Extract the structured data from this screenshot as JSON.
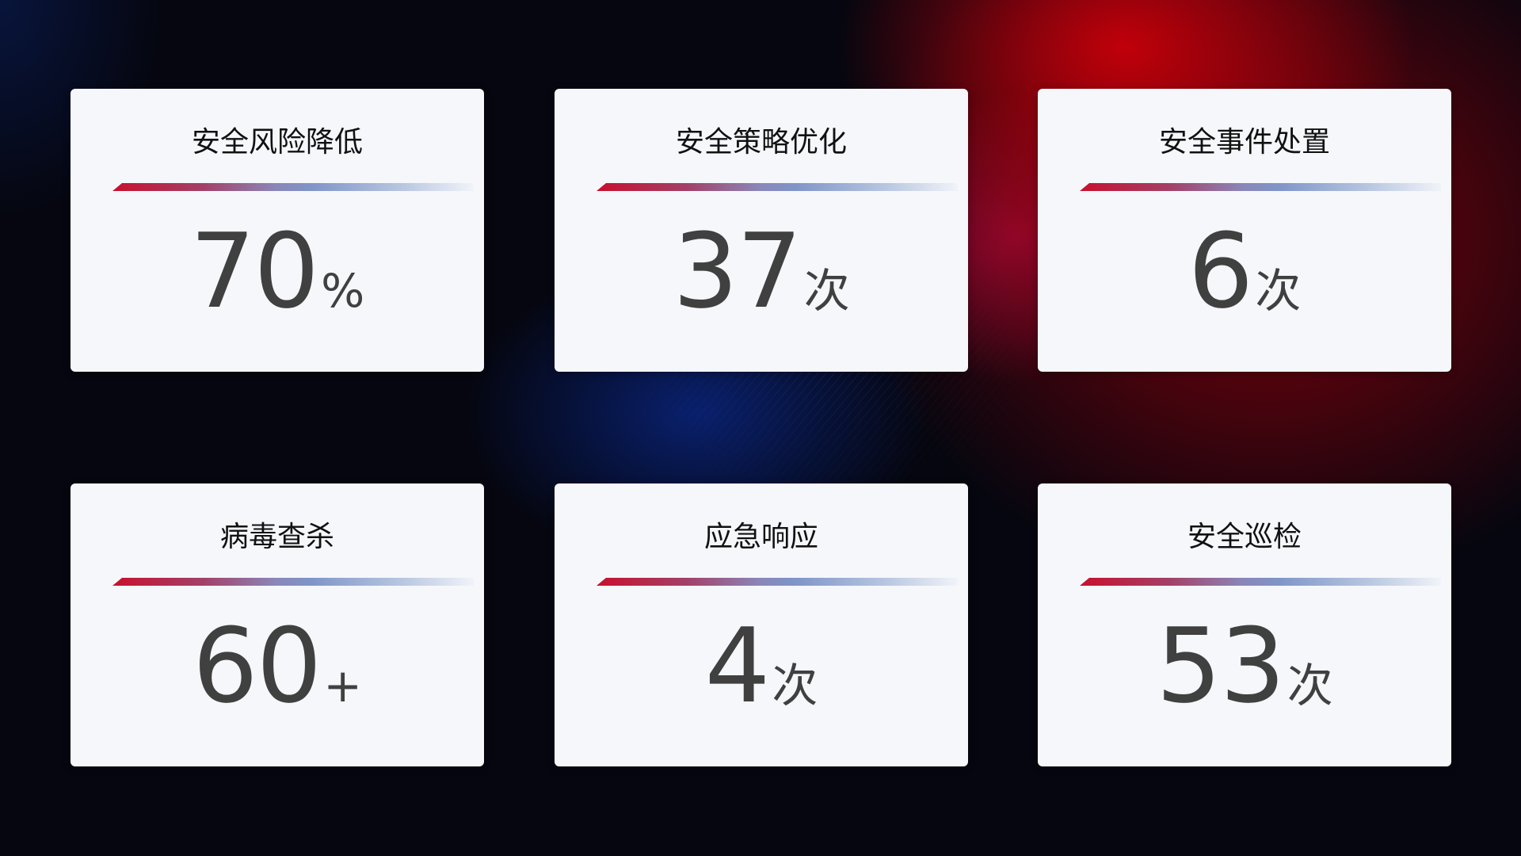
{
  "cards": [
    {
      "title": "安全风险降低",
      "value": "70",
      "unit": "%"
    },
    {
      "title": "安全策略优化",
      "value": "37",
      "unit": "次"
    },
    {
      "title": "安全事件处置",
      "value": "6",
      "unit": "次"
    },
    {
      "title": "病毒查杀",
      "value": "60",
      "unit": "+"
    },
    {
      "title": "应急响应",
      "value": "4",
      "unit": "次"
    },
    {
      "title": "安全巡检",
      "value": "53",
      "unit": "次"
    }
  ],
  "colors": {
    "accent_red": "#c8102e",
    "accent_blue": "#7f95c8",
    "card_bg": "#f5f7fb",
    "value_text": "#404040"
  }
}
